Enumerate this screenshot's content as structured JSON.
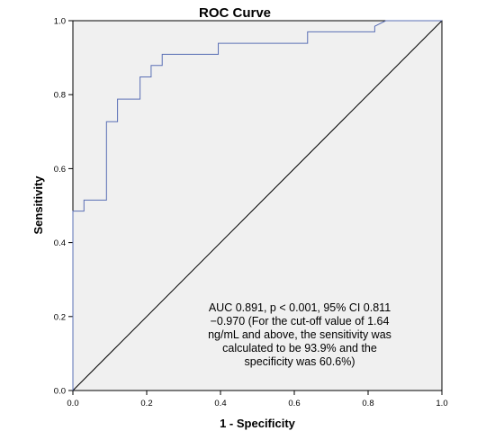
{
  "chart_data": {
    "type": "line",
    "title": "ROC Curve",
    "xlabel": "1 - Specificity",
    "ylabel": "Sensitivity",
    "xlim": [
      0.0,
      1.0
    ],
    "ylim": [
      0.0,
      1.0
    ],
    "xticks": [
      "0.0",
      "0.2",
      "0.4",
      "0.6",
      "0.8",
      "1.0"
    ],
    "yticks": [
      "0.0",
      "0.2",
      "0.4",
      "0.6",
      "0.8",
      "1.0"
    ],
    "grid": false,
    "series": [
      {
        "color": "#5a6fb5",
        "step": true,
        "x": [
          0.0,
          0.0,
          0.03,
          0.03,
          0.091,
          0.091,
          0.121,
          0.121,
          0.182,
          0.182,
          0.212,
          0.212,
          0.242,
          0.242,
          0.394,
          0.394,
          0.636,
          0.636,
          0.818,
          0.818,
          0.848,
          1.0
        ],
        "y": [
          0.0,
          0.485,
          0.485,
          0.515,
          0.515,
          0.727,
          0.727,
          0.788,
          0.788,
          0.848,
          0.848,
          0.879,
          0.879,
          0.909,
          0.909,
          0.939,
          0.939,
          0.97,
          0.97,
          0.985,
          1.0,
          1.0
        ]
      },
      {
        "color": "#000000",
        "x": [
          0.0,
          1.0
        ],
        "y": [
          0.0,
          1.0
        ]
      }
    ],
    "annotation": [
      "AUC 0.891, p < 0.001, 95% CI 0.811",
      "−0.970 (For the cut-off value of 1.64",
      "ng/mL and above, the sensitivity was",
      "calculated to be 93.9% and the",
      "specificity was 60.6%)"
    ],
    "colors": {
      "plot_background": "#f0f0f0",
      "roc_line": "#5a6fb5",
      "reference_line": "#000000"
    }
  }
}
